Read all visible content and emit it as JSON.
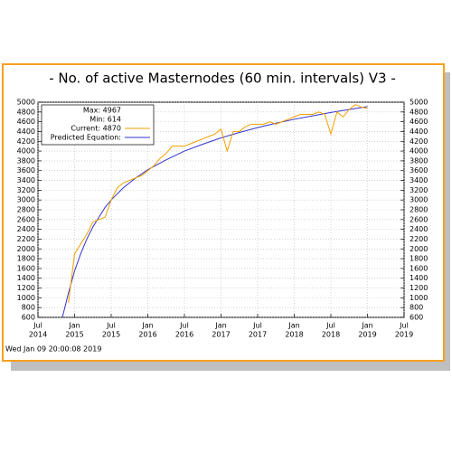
{
  "chart_data": {
    "type": "line",
    "title": "- No. of active Masternodes (60 min. intervals) V3 -",
    "timestamp": "Wed Jan 09 20:00:08 2019",
    "legend_notes": [
      "Max: 4967",
      "Min: 614"
    ],
    "grid": true,
    "xlim": [
      "2014-07",
      "2019-07"
    ],
    "xticks": [
      {
        "value": "2014-07",
        "label": [
          "Jul",
          "2014"
        ]
      },
      {
        "value": "2015-01",
        "label": [
          "Jan",
          "2015"
        ]
      },
      {
        "value": "2015-07",
        "label": [
          "Jul",
          "2015"
        ]
      },
      {
        "value": "2016-01",
        "label": [
          "Jan",
          "2016"
        ]
      },
      {
        "value": "2016-07",
        "label": [
          "Jul",
          "2016"
        ]
      },
      {
        "value": "2017-01",
        "label": [
          "Jan",
          "2017"
        ]
      },
      {
        "value": "2017-07",
        "label": [
          "Jul",
          "2017"
        ]
      },
      {
        "value": "2018-01",
        "label": [
          "Jan",
          "2018"
        ]
      },
      {
        "value": "2018-07",
        "label": [
          "Jul",
          "2018"
        ]
      },
      {
        "value": "2019-01",
        "label": [
          "Jan",
          "2019"
        ]
      },
      {
        "value": "2019-07",
        "label": [
          "Jul",
          "2019"
        ]
      }
    ],
    "ylim": [
      600,
      5000
    ],
    "yticks": [
      600,
      800,
      1000,
      1200,
      1400,
      1600,
      1800,
      2000,
      2200,
      2400,
      2600,
      2800,
      3000,
      3200,
      3400,
      3600,
      3800,
      4000,
      4200,
      4400,
      4600,
      4800,
      5000
    ],
    "y2lim": [
      600,
      5000
    ],
    "y2ticks": [
      600,
      800,
      1000,
      1200,
      1400,
      1600,
      1800,
      2000,
      2200,
      2400,
      2600,
      2800,
      3000,
      3200,
      3400,
      3600,
      3800,
      4000,
      4200,
      4400,
      4600,
      4800,
      5000
    ],
    "series": [
      {
        "name": "Current: 4870",
        "color": "#f0a000",
        "x": [
          "2014-12",
          "2015-01",
          "2015-02",
          "2015-03",
          "2015-04",
          "2015-05",
          "2015-06",
          "2015-07",
          "2015-08",
          "2015-09",
          "2015-10",
          "2015-11",
          "2015-12",
          "2016-01",
          "2016-02",
          "2016-03",
          "2016-04",
          "2016-05",
          "2016-06",
          "2016-07",
          "2016-08",
          "2016-09",
          "2016-10",
          "2016-11",
          "2016-12",
          "2017-01",
          "2017-02",
          "2017-03",
          "2017-04",
          "2017-05",
          "2017-06",
          "2017-07",
          "2017-08",
          "2017-09",
          "2017-10",
          "2017-11",
          "2017-12",
          "2018-01",
          "2018-02",
          "2018-03",
          "2018-04",
          "2018-05",
          "2018-06",
          "2018-07",
          "2018-08",
          "2018-09",
          "2018-10",
          "2018-11",
          "2018-12",
          "2019-01"
        ],
        "values": [
          900,
          1900,
          2100,
          2300,
          2550,
          2600,
          2650,
          3000,
          3250,
          3350,
          3400,
          3450,
          3500,
          3600,
          3700,
          3850,
          3950,
          4100,
          4100,
          4100,
          4150,
          4200,
          4250,
          4300,
          4350,
          4450,
          4000,
          4400,
          4400,
          4500,
          4550,
          4550,
          4550,
          4600,
          4550,
          4600,
          4650,
          4700,
          4750,
          4750,
          4750,
          4800,
          4750,
          4350,
          4800,
          4700,
          4850,
          4950,
          4900,
          4870
        ]
      },
      {
        "name": "Predicted Equation:",
        "color": "#3333cc",
        "x": [
          "2014-11",
          "2014-12",
          "2015-01",
          "2015-02",
          "2015-03",
          "2015-04",
          "2015-05",
          "2015-06",
          "2015-07",
          "2015-09",
          "2015-11",
          "2016-01",
          "2016-04",
          "2016-07",
          "2016-10",
          "2017-01",
          "2017-04",
          "2017-07",
          "2017-10",
          "2018-01",
          "2018-04",
          "2018-07",
          "2018-10",
          "2019-01"
        ],
        "values": [
          600,
          1100,
          1550,
          1900,
          2200,
          2450,
          2650,
          2850,
          3000,
          3250,
          3450,
          3620,
          3820,
          4000,
          4140,
          4270,
          4380,
          4480,
          4570,
          4650,
          4720,
          4790,
          4850,
          4910
        ]
      }
    ]
  }
}
